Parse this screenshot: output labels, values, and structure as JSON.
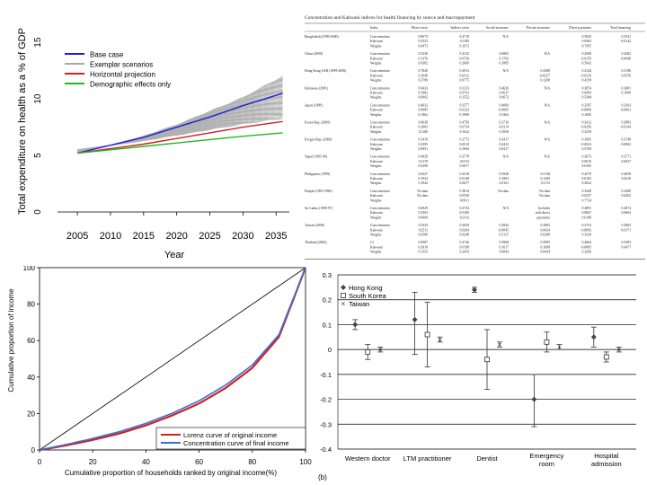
{
  "chart_data": [
    {
      "type": "line",
      "title": "",
      "xlabel": "Year",
      "ylabel": "Total expenditure on health as a % of GDP",
      "xlim": [
        2002,
        2037
      ],
      "ylim": [
        0,
        17
      ],
      "xticks": [
        "2005",
        "2010",
        "2015",
        "2020",
        "2025",
        "2030",
        "2035"
      ],
      "yticks": [
        "0",
        "5",
        "10",
        "15"
      ],
      "legend_position": "top-left",
      "series": [
        {
          "name": "Base case",
          "color": "#1f1fd6",
          "x": [
            2005,
            2010,
            2015,
            2020,
            2025,
            2030,
            2036
          ],
          "y": [
            5.2,
            5.9,
            6.6,
            7.5,
            8.4,
            9.4,
            10.5
          ]
        },
        {
          "name": "Exemplar scenarios",
          "color": "#a8a8a8",
          "x": [
            2005,
            2010,
            2015,
            2020,
            2025,
            2030,
            2036
          ],
          "y": [
            5.2,
            5.9,
            6.7,
            7.7,
            8.9,
            10.1,
            12.0
          ]
        },
        {
          "name": "Horizontal projection",
          "color": "#d42020",
          "x": [
            2005,
            2010,
            2015,
            2020,
            2025,
            2030,
            2036
          ],
          "y": [
            5.2,
            5.6,
            6.0,
            6.5,
            7.0,
            7.5,
            8.0
          ]
        },
        {
          "name": "Demographic effects only",
          "color": "#22b822",
          "x": [
            2005,
            2010,
            2015,
            2020,
            2025,
            2030,
            2036
          ],
          "y": [
            5.2,
            5.5,
            5.8,
            6.1,
            6.4,
            6.7,
            7.0
          ]
        }
      ]
    },
    {
      "type": "line",
      "title": "",
      "xlabel": "Cumulative proportion of households ranked by original income(%)",
      "ylabel": "Cumulative proportion of income",
      "xlim": [
        0,
        100
      ],
      "ylim": [
        0,
        100
      ],
      "xticks": [
        "0",
        "20",
        "40",
        "60",
        "80",
        "100"
      ],
      "yticks": [
        "0",
        "20",
        "40",
        "60",
        "80",
        "100"
      ],
      "legend_position": "bottom-right",
      "series": [
        {
          "name": "Lorenz curve of original income",
          "color": "#d42020",
          "x": [
            0,
            10,
            20,
            30,
            40,
            50,
            60,
            70,
            80,
            90,
            100
          ],
          "y": [
            0,
            2.5,
            5.5,
            9,
            13.5,
            19,
            25.5,
            34,
            45,
            62,
            100
          ]
        },
        {
          "name": "Concentration curve of final income",
          "color": "#3a6fd6",
          "x": [
            0,
            10,
            20,
            30,
            40,
            50,
            60,
            70,
            80,
            90,
            100
          ],
          "y": [
            0,
            3,
            6.3,
            10,
            14.6,
            20.2,
            27,
            35.6,
            46.6,
            63.2,
            100
          ]
        }
      ]
    },
    {
      "type": "scatter",
      "title": "",
      "panel_label": "(b)",
      "categories": [
        "Western doctor",
        "LTM practitioner",
        "Dentist",
        "Emergency room",
        "Hospital admission"
      ],
      "ylim": [
        -0.4,
        0.3
      ],
      "yticks": [
        "0.3",
        "0.2",
        "0.1",
        "0",
        "-0.1",
        "-0.2",
        "-0.3",
        "-0.4"
      ],
      "legend_position": "top-left",
      "series": [
        {
          "name": "Hong Kong",
          "marker": "diamond",
          "values": [
            0.1,
            0.12,
            0.24,
            -0.2,
            0.05
          ],
          "err_low": [
            0.08,
            -0.02,
            0.23,
            -0.31,
            0.01
          ],
          "err_high": [
            0.12,
            0.23,
            0.25,
            -0.1,
            0.09
          ]
        },
        {
          "name": "South Korea",
          "marker": "square",
          "values": [
            -0.01,
            0.06,
            -0.04,
            0.03,
            -0.03
          ],
          "err_low": [
            -0.04,
            -0.07,
            -0.16,
            -0.01,
            -0.05
          ],
          "err_high": [
            0.02,
            0.19,
            0.08,
            0.07,
            -0.01
          ]
        },
        {
          "name": "Taiwan",
          "marker": "x",
          "values": [
            0.0,
            0.04,
            0.02,
            0.01,
            0.0
          ],
          "err_low": [
            -0.01,
            0.03,
            0.01,
            0.0,
            -0.01
          ],
          "err_high": [
            0.01,
            0.05,
            0.03,
            0.02,
            0.01
          ]
        }
      ]
    }
  ],
  "table": {
    "title": "Concentration and Kakwani indices for health financing by source and macropayment",
    "columns": [
      "Index",
      "Direct taxes",
      "Indirect taxes",
      "Social insurance",
      "Private insurance",
      "Direct payments",
      "Total financing"
    ],
    "groups": [
      {
        "label": "Bangladesh (1999-2000)",
        "rows": [
          [
            "Concentration",
            "0.8673",
            "0.4718",
            "N/A",
            "",
            "0.3943",
            "0.3541"
          ],
          [
            "Kakwani",
            "0.5523",
            "0.1185",
            "",
            "",
            "0.0365",
            "-0.0142"
          ],
          [
            "Weights",
            "0.0473",
            "0.1672",
            "",
            "",
            "0.7455",
            ""
          ]
        ]
      },
      {
        "label": "China (2000)",
        "rows": [
          [
            "Concentration",
            "0.5230",
            "0.4125",
            "0.6865",
            "N/A",
            "0.4360",
            "0.4382"
          ],
          [
            "Kakwani",
            "0.1376",
            "0.0736",
            "0.1763",
            "",
            "-0.0159",
            "-0.0046"
          ],
          [
            "Weights",
            "0.0382",
            "0.2069",
            "0.1885",
            "",
            "0.5642",
            ""
          ]
        ]
      },
      {
        "label": "Hong Kong SAR (1999-2000)",
        "rows": [
          [
            "Concentration",
            "0.7640",
            "0.4913",
            "N/A",
            "0.4388",
            "0.4144",
            "0.5196"
          ],
          [
            "Kakwani",
            "0.3040",
            "0.0312",
            "",
            "-0.0257",
            "-0.0319",
            "0.0558"
          ],
          [
            "Weights",
            "0.3799",
            "0.0775",
            "",
            "0.1268",
            "0.4159",
            ""
          ]
        ]
      },
      {
        "label": "Indonesia (2001)",
        "rows": [
          [
            "Concentration",
            "0.6433",
            "0.3153",
            "0.4626",
            "N/A",
            "0.3874",
            "0.3681"
          ],
          [
            "Kakwani",
            "0.1982",
            "0.0741",
            "0.0637",
            "",
            "0.0493",
            "0.1098"
          ],
          [
            "Weights",
            "0.0992",
            "0.1552",
            "0.0672",
            "",
            "0.5384",
            ""
          ]
        ]
      },
      {
        "label": "Japan (1998)",
        "rows": [
          [
            "Concentration",
            "0.4632",
            "0.3577",
            "0.4060",
            "N/A",
            "0.2507",
            "0.3393"
          ],
          [
            "Kakwani",
            "0.0985",
            "-0.0123",
            "-0.0065",
            "",
            "-0.0660",
            "-0.0061"
          ],
          [
            "Weights",
            "0.1962",
            "0.1908",
            "0.5464",
            "",
            "0.1685",
            ""
          ]
        ]
      },
      {
        "label": "Korea Rep. (2000)",
        "rows": [
          [
            "Concentration",
            "0.6038",
            "0.4756",
            "0.3716",
            "N/A",
            "0.3412",
            "0.3883"
          ],
          [
            "Kakwani",
            "0.2003",
            "0.0734",
            "-0.0114",
            "",
            "-0.0256",
            "-0.0144"
          ],
          [
            "Weights",
            "0.1180",
            "0.1622",
            "0.3958",
            "",
            "0.3239",
            ""
          ]
        ]
      },
      {
        "label": "Kyrgyz Rep. (2000)",
        "rows": [
          [
            "Concentration",
            "0.5419",
            "0.3773",
            "0.3417",
            "N/A",
            "0.3905",
            "0.3748"
          ],
          [
            "Kakwani",
            "0.2595",
            "0.0510",
            "0.0422",
            "",
            "-0.0023",
            "0.0002"
          ],
          [
            "Weights",
            "0.0951",
            "0.1694",
            "0.0417",
            "",
            "0.5769",
            ""
          ]
        ]
      },
      {
        "label": "Nepal (1995-96)",
        "rows": [
          [
            "Concentration",
            "0.4929",
            "0.3778",
            "N/A",
            "N/A",
            "0.3673",
            "0.3771"
          ],
          [
            "Kakwani",
            "0.1178",
            "0.0113",
            "",
            "",
            "0.0010",
            "0.0027"
          ],
          [
            "Weights",
            "0.0299",
            "0.0677",
            "",
            "",
            "0.6185",
            ""
          ]
        ]
      },
      {
        "label": "Philippines (1999)",
        "rows": [
          [
            "Concentration",
            "0.6327",
            "0.4318",
            "0.5948",
            "0.5138",
            "0.4579",
            "0.4858"
          ],
          [
            "Kakwani",
            "0.1924",
            "0.0148",
            "0.1803",
            "0.1269",
            "0.0165",
            "0.0416"
          ],
          [
            "Weights",
            "0.1942",
            "0.0677",
            "0.0161",
            "0.1115",
            "0.4922",
            ""
          ]
        ]
      },
      {
        "label": "Punjab (1995-1996)",
        "rows": [
          [
            "Concentration",
            "No data",
            "0.3814",
            "No data",
            "No data",
            "0.3449",
            "0.3380"
          ],
          [
            "Kakwani",
            "No data",
            "0.0558",
            "",
            "No data",
            "0.0237",
            "0.0202"
          ],
          [
            "Weights",
            "",
            "0.0911",
            "",
            "",
            "0.7734",
            ""
          ]
        ]
      },
      {
        "label": "Sri Lanka (1996-97)",
        "rows": [
          [
            "Concentration",
            "0.6929",
            "0.3734",
            "N/A",
            "Includes",
            "0.4091",
            "0.4074"
          ],
          [
            "Kakwani",
            "0.3503",
            "0.0100",
            "",
            "with direct",
            "0.0847",
            "0.0604"
          ],
          [
            "Weights",
            "0.0669",
            "0.3113",
            "",
            "payments",
            "0.6198",
            ""
          ]
        ]
      },
      {
        "label": "Taiwan (2000)",
        "rows": [
          [
            "Concentration",
            "0.5325",
            "0.3039",
            "0.2842",
            "0.2865",
            "0.2752",
            "0.2865"
          ],
          [
            "Kakwani",
            "0.2511",
            "0.0204",
            "-0.0045",
            "0.0034",
            "-0.0093",
            "-0.0171"
          ],
          [
            "Weights",
            "0.0580",
            "0.0248",
            "0.5137",
            "0.0288",
            "0.3328",
            ""
          ]
        ]
      },
      {
        "label": "Thailand (2002)",
        "rows": [
          [
            "CI",
            "0.8587",
            "0.4726",
            "0.5968",
            "0.5985",
            "0.4664",
            "0.5283"
          ],
          [
            "Kakwani",
            "0.3910",
            "0.0198",
            "0.1617",
            "0.1698",
            "-0.0085",
            "0.0477"
          ],
          [
            "Weights",
            "0.1553",
            "0.2454",
            "0.0844",
            "0.0434",
            "0.3296",
            ""
          ]
        ]
      }
    ]
  }
}
